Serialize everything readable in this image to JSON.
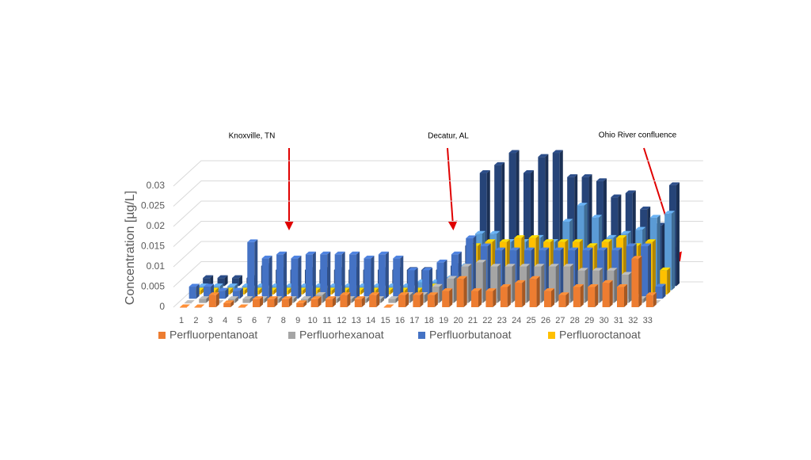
{
  "chart_data": {
    "type": "bar3d",
    "y_label": "Concentration [µg/L]",
    "annotations": [
      "Knoxville, TN",
      "Decatur, AL",
      "Ohio River confluence"
    ],
    "categories": [
      "1",
      "2",
      "3",
      "4",
      "5",
      "6",
      "7",
      "8",
      "9",
      "10",
      "11",
      "12",
      "13",
      "14",
      "15",
      "16",
      "17",
      "18",
      "19",
      "20",
      "21",
      "22",
      "23",
      "24",
      "25",
      "26",
      "27",
      "28",
      "29",
      "30",
      "31",
      "32",
      "33"
    ],
    "ylim": [
      0,
      0.03
    ],
    "yticks": [
      0,
      0.005,
      0.01,
      0.015,
      0.02,
      0.025,
      0.03
    ],
    "grid": true,
    "series": [
      {
        "name": "Perfluorpentanoat",
        "color": "#ed7d31",
        "values": [
          0,
          0,
          0.003,
          0.001,
          0,
          0.002,
          0.002,
          0.002,
          0.001,
          0.002,
          0.002,
          0.003,
          0.002,
          0.003,
          0,
          0.003,
          0.003,
          0.003,
          0.004,
          0.007,
          0.004,
          0.004,
          0.005,
          0.006,
          0.007,
          0.004,
          0.003,
          0.005,
          0.005,
          0.006,
          0.005,
          0.012,
          0.003
        ]
      },
      {
        "name": "Perfluorhexanoat",
        "color": "#a5a5a5",
        "values": [
          0,
          0.001,
          0,
          0.001,
          0.001,
          0.001,
          0.001,
          0.001,
          0.001,
          0.002,
          0.001,
          0.001,
          0.001,
          0.001,
          0.001,
          0.002,
          0.002,
          0.004,
          0.006,
          0.009,
          0.01,
          0.009,
          0.009,
          0.009,
          0.009,
          0.009,
          0.009,
          0.008,
          0.008,
          0.008,
          0.007,
          0.001,
          0
        ]
      },
      {
        "name": "Perfluorbutanoat",
        "color": "#4472c4",
        "values": [
          0.003,
          0.003,
          0.002,
          0.002,
          0.014,
          0.01,
          0.011,
          0.01,
          0.011,
          0.011,
          0.011,
          0.011,
          0.01,
          0.011,
          0.01,
          0.007,
          0.007,
          0.009,
          0.011,
          0.015,
          0.013,
          0.012,
          0.012,
          0.012,
          0.012,
          0.012,
          0.012,
          0.012,
          0.012,
          0.012,
          0.013,
          0.013,
          0.003
        ]
      },
      {
        "name": "Perfluoroctanoat",
        "color": "#ffc000",
        "values": [
          0.001,
          0.001,
          0.001,
          0.001,
          0.001,
          0.001,
          0.001,
          0.001,
          0.001,
          0.001,
          0.001,
          0.001,
          0.001,
          0.001,
          0.001,
          0.001,
          0.002,
          0.003,
          0.005,
          0.012,
          0.013,
          0.013,
          0.014,
          0.014,
          0.013,
          0.013,
          0.013,
          0.012,
          0.013,
          0.014,
          0.012,
          0.013,
          0.006
        ]
      },
      {
        "color": "#5b9bd5",
        "values": [
          0.001,
          0.001,
          0.001,
          0.001,
          0.001,
          0.001,
          0.001,
          0.001,
          0.001,
          0.001,
          0.001,
          0.001,
          0.001,
          0.001,
          0.001,
          0.002,
          0.002,
          0.003,
          0.006,
          0.014,
          0.014,
          0.012,
          0.012,
          0.013,
          0.012,
          0.017,
          0.021,
          0.018,
          0.013,
          0.014,
          0.015,
          0.018,
          0.019
        ]
      },
      {
        "color": "#264478",
        "values": [
          0.002,
          0.002,
          0.002,
          0.002,
          0.005,
          0.004,
          0.004,
          0.004,
          0.004,
          0.004,
          0.004,
          0.004,
          0.004,
          0.004,
          0.004,
          0.004,
          0.004,
          0.005,
          0.01,
          0.028,
          0.03,
          0.033,
          0.028,
          0.032,
          0.033,
          0.027,
          0.027,
          0.026,
          0.022,
          0.023,
          0.019,
          0.015,
          0.025
        ]
      }
    ]
  }
}
